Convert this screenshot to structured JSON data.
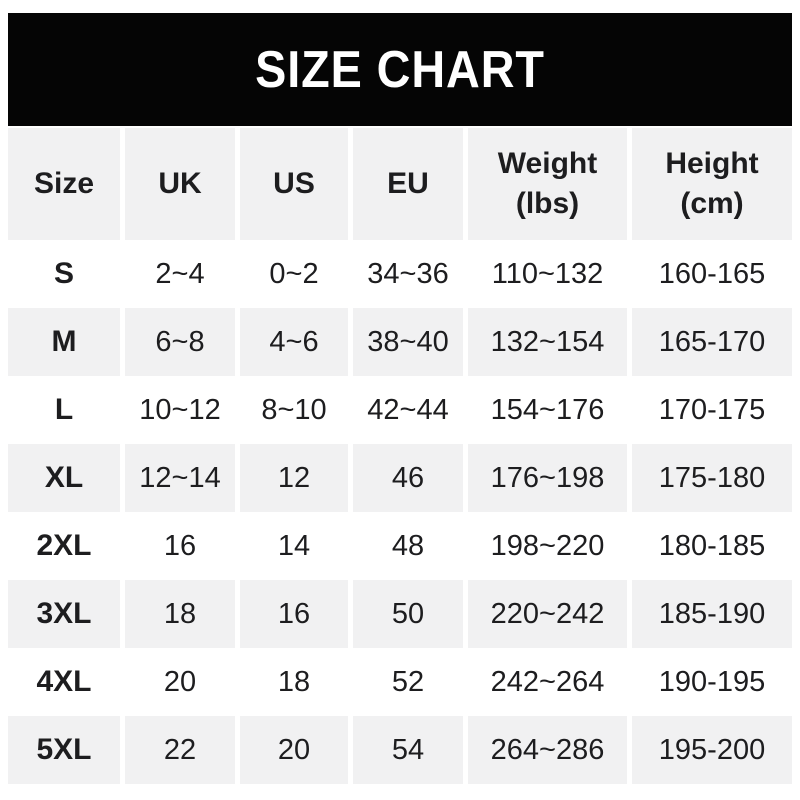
{
  "colors": {
    "banner_bg": "#050505",
    "banner_text": "#ffffff",
    "row_alt_bg": "#f1f1f2",
    "text": "#1d1d1f",
    "page_bg": "#ffffff"
  },
  "chart_data": {
    "type": "table",
    "title": "SIZE CHART",
    "columns": [
      "Size",
      "UK",
      "US",
      "EU",
      "Weight (lbs)",
      "Height (cm)"
    ],
    "rows": [
      [
        "S",
        "2~4",
        "0~2",
        "34~36",
        "110~132",
        "160-165"
      ],
      [
        "M",
        "6~8",
        "4~6",
        "38~40",
        "132~154",
        "165-170"
      ],
      [
        "L",
        "10~12",
        "8~10",
        "42~44",
        "154~176",
        "170-175"
      ],
      [
        "XL",
        "12~14",
        "12",
        "46",
        "176~198",
        "175-180"
      ],
      [
        "2XL",
        "16",
        "14",
        "48",
        "198~220",
        "180-185"
      ],
      [
        "3XL",
        "18",
        "16",
        "50",
        "220~242",
        "185-190"
      ],
      [
        "4XL",
        "20",
        "18",
        "52",
        "242~264",
        "190-195"
      ],
      [
        "5XL",
        "22",
        "20",
        "54",
        "264~286",
        "195-200"
      ]
    ],
    "layout": {
      "header_background": "#f1f1f2",
      "alternating_rows": true,
      "grid": "white gutters between columns"
    }
  }
}
